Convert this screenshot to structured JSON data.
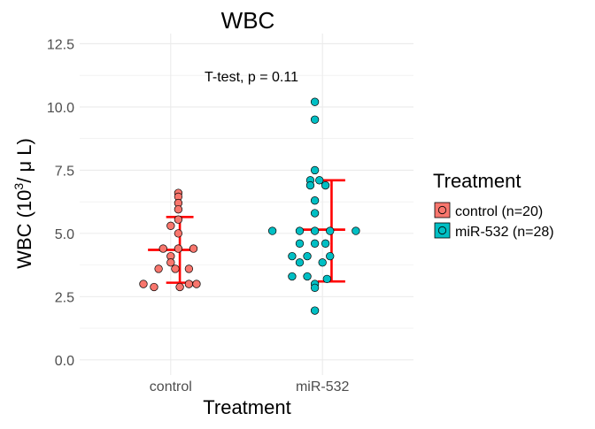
{
  "chart_data": {
    "type": "scatter",
    "title": "WBC",
    "xlabel": "Treatment",
    "ylabel_main": "WBC (10",
    "ylabel_sup": "3",
    "ylabel_rest": "/ μ L)",
    "categories": [
      "control",
      "miR-532"
    ],
    "ylim": [
      -0.6,
      12.9
    ],
    "yticks": [
      0.0,
      2.5,
      5.0,
      7.5,
      10.0,
      12.5
    ],
    "ytick_labels": [
      "0.0",
      "2.5",
      "5.0",
      "7.5",
      "10.0",
      "12.5"
    ],
    "grid": true,
    "annotation": "T-test, p = 0.11",
    "legend": {
      "title": "Treatment",
      "position": "right",
      "entries": [
        "control (n=20)",
        "miR-532 (n=28)"
      ]
    },
    "colors": {
      "control": "#F8766D",
      "mir532": "#00BFC4",
      "summary": "#FF0000",
      "grid": "#EBEBEB",
      "point_edge": "#000000"
    },
    "series": [
      {
        "category": "control",
        "mean": 4.35,
        "sd_low": 3.05,
        "sd_high": 5.65,
        "points": [
          {
            "dx": 0.05,
            "y": 6.6
          },
          {
            "dx": 0.05,
            "y": 6.45
          },
          {
            "dx": 0.05,
            "y": 6.2
          },
          {
            "dx": 0.05,
            "y": 5.95
          },
          {
            "dx": 0.05,
            "y": 5.55
          },
          {
            "dx": 0.0,
            "y": 5.3
          },
          {
            "dx": 0.05,
            "y": 5.0
          },
          {
            "dx": -0.05,
            "y": 4.4
          },
          {
            "dx": 0.05,
            "y": 4.4
          },
          {
            "dx": 0.15,
            "y": 4.4
          },
          {
            "dx": 0.0,
            "y": 4.1
          },
          {
            "dx": 0.0,
            "y": 3.85
          },
          {
            "dx": -0.08,
            "y": 3.6
          },
          {
            "dx": 0.03,
            "y": 3.6
          },
          {
            "dx": 0.12,
            "y": 3.6
          },
          {
            "dx": -0.18,
            "y": 3.0
          },
          {
            "dx": 0.12,
            "y": 3.0
          },
          {
            "dx": 0.17,
            "y": 3.0
          },
          {
            "dx": -0.11,
            "y": 2.88
          },
          {
            "dx": 0.06,
            "y": 2.88
          }
        ]
      },
      {
        "category": "miR-532",
        "mean": 5.15,
        "sd_low": 3.1,
        "sd_high": 7.1,
        "points": [
          {
            "dx": -0.05,
            "y": 10.2
          },
          {
            "dx": -0.05,
            "y": 9.5
          },
          {
            "dx": -0.05,
            "y": 7.5
          },
          {
            "dx": -0.08,
            "y": 7.1
          },
          {
            "dx": -0.02,
            "y": 7.1
          },
          {
            "dx": -0.08,
            "y": 6.9
          },
          {
            "dx": 0.02,
            "y": 6.9
          },
          {
            "dx": -0.05,
            "y": 6.3
          },
          {
            "dx": -0.05,
            "y": 5.8
          },
          {
            "dx": -0.33,
            "y": 5.1
          },
          {
            "dx": -0.15,
            "y": 5.1
          },
          {
            "dx": -0.05,
            "y": 5.1
          },
          {
            "dx": 0.05,
            "y": 5.1
          },
          {
            "dx": 0.22,
            "y": 5.1
          },
          {
            "dx": -0.15,
            "y": 4.6
          },
          {
            "dx": -0.05,
            "y": 4.6
          },
          {
            "dx": 0.02,
            "y": 4.6
          },
          {
            "dx": -0.2,
            "y": 4.1
          },
          {
            "dx": -0.1,
            "y": 4.1
          },
          {
            "dx": 0.05,
            "y": 4.1
          },
          {
            "dx": -0.15,
            "y": 3.85
          },
          {
            "dx": 0.0,
            "y": 3.85
          },
          {
            "dx": -0.2,
            "y": 3.3
          },
          {
            "dx": -0.1,
            "y": 3.3
          },
          {
            "dx": 0.03,
            "y": 3.2
          },
          {
            "dx": -0.05,
            "y": 3.0
          },
          {
            "dx": -0.05,
            "y": 2.85
          },
          {
            "dx": -0.05,
            "y": 1.95
          }
        ]
      }
    ]
  }
}
